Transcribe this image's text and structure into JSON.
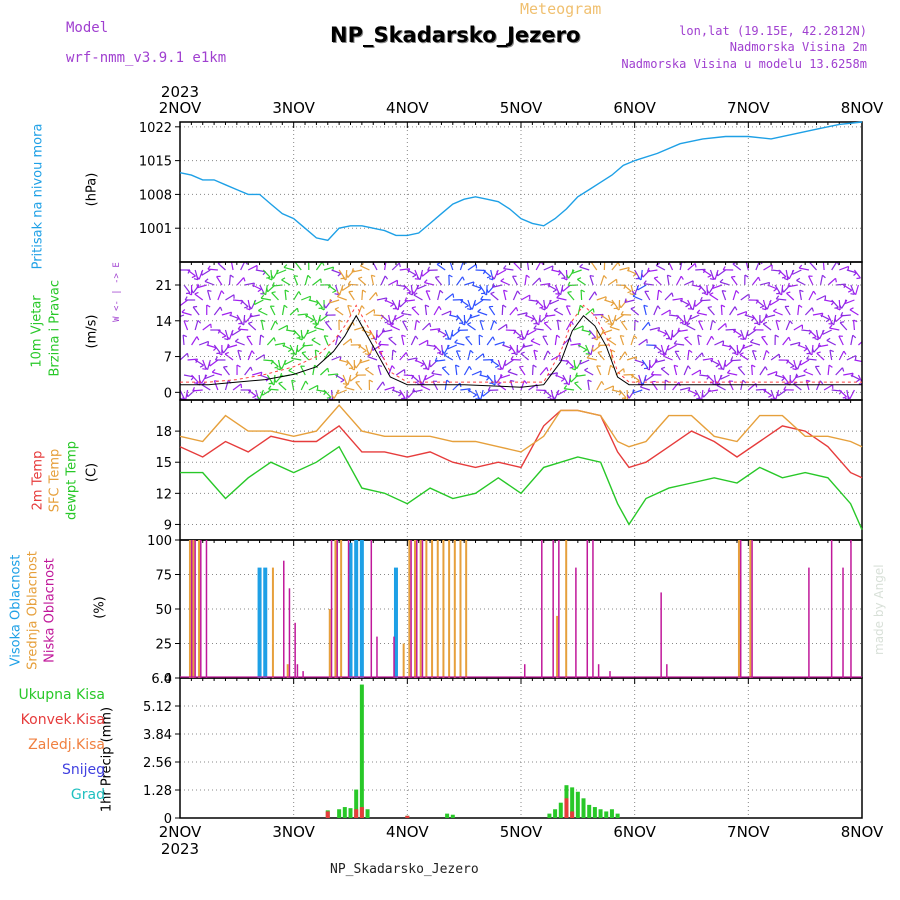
{
  "header": {
    "model_label": "Model",
    "model_version": "wrf-nmm_v3.9.1  e1km",
    "meteogram_label": "Meteogram",
    "station": "NP_Skadarsko_Jezero",
    "lonlat": "lon,lat (19.15E, 42.2812N)",
    "height": "Nadmorska Visina 2m",
    "model_height": "Nadmorska Visina u modelu 13.6258m"
  },
  "footer": {
    "station": "NP_Skadarsko_Jezero",
    "credit": "made by Angel"
  },
  "time_axis": {
    "year": "2023",
    "ticks": [
      "2NOV",
      "3NOV",
      "4NOV",
      "5NOV",
      "6NOV",
      "7NOV",
      "8NOV"
    ]
  },
  "panel_labels": {
    "pressure": "Pritisak na nivou mora",
    "pressure_unit": "(hPa)",
    "wind_1": "10m Vjetar",
    "wind_2": "Brzina i Pravac",
    "wind_unit": "(m/s)",
    "compass": "W  <- | ->  E",
    "temp_2m": "2m Temp",
    "temp_sfc": "SFC Temp",
    "temp_dew": "dewpt Temp",
    "temp_unit": "(C)",
    "cloud_high": "Visoka Oblacnost",
    "cloud_mid": "Srednja Oblacnost",
    "cloud_low": "Niska Oblacnost",
    "cloud_unit": "(%)",
    "precip_unit": "1hr Precip  (mm)",
    "precip_total": "Ukupna  Kisa",
    "precip_conv": "Konvek.Kisa",
    "precip_frozen": "Zaledj.Kisa",
    "precip_snow": "Snijeg",
    "precip_hail": "Grad"
  },
  "colors": {
    "pressure": "#1ea0e6",
    "wind_speed": "#000000",
    "wind_gust": "#ff4040",
    "temp_2m": "#e63c3c",
    "temp_sfc": "#e6a03c",
    "temp_dew": "#28c828",
    "cloud_high": "#1ea0e6",
    "cloud_mid": "#e6a03c",
    "cloud_low": "#c0189a",
    "precip_total": "#28c828",
    "precip_conv": "#e63c3c",
    "header_purple": "#a040d0"
  },
  "chart_data": [
    {
      "type": "line",
      "panel": "pressure",
      "x": [
        0,
        0.1,
        0.2,
        0.3,
        0.4,
        0.5,
        0.6,
        0.7,
        0.8,
        0.9,
        1.0,
        1.1,
        1.2,
        1.3,
        1.4,
        1.5,
        1.6,
        1.7,
        1.8,
        1.9,
        2.0,
        2.1,
        2.2,
        2.3,
        2.4,
        2.5,
        2.6,
        2.7,
        2.8,
        2.9,
        3.0,
        3.1,
        3.2,
        3.3,
        3.4,
        3.5,
        3.6,
        3.7,
        3.8,
        3.9,
        4.0,
        4.2,
        4.4,
        4.6,
        4.8,
        5.0,
        5.2,
        5.4,
        5.6,
        5.8,
        6.0
      ],
      "series": [
        {
          "values": [
            1012.5,
            1012,
            1011,
            1011,
            1010,
            1009,
            1008,
            1008,
            1006,
            1004,
            1003,
            1001,
            999,
            998.5,
            1001,
            1001.5,
            1001.5,
            1001,
            1000.5,
            999.5,
            999.5,
            1000,
            1002,
            1004,
            1006,
            1007,
            1007.5,
            1007,
            1006.5,
            1005,
            1003,
            1002,
            1001.5,
            1003,
            1005,
            1007.5,
            1009,
            1010.5,
            1012,
            1014,
            1015,
            1016.5,
            1018.5,
            1019.5,
            1020,
            1020,
            1019.5,
            1020.5,
            1021.5,
            1022.5,
            1023
          ]
        }
      ],
      "ylabel": "(hPa)",
      "yticks": [
        1001,
        1008,
        1015,
        1022
      ],
      "ylim": [
        994,
        1023
      ],
      "grid": true
    },
    {
      "type": "line",
      "panel": "wind",
      "x": [
        0,
        0.25,
        0.5,
        0.75,
        1.0,
        1.2,
        1.35,
        1.45,
        1.55,
        1.7,
        1.85,
        2.0,
        2.5,
        3.0,
        3.2,
        3.35,
        3.45,
        3.55,
        3.65,
        3.75,
        3.85,
        3.95,
        4.2,
        4.5,
        5.0,
        5.5,
        6.0
      ],
      "series": [
        {
          "values": [
            1.5,
            1.5,
            2,
            2.5,
            3.5,
            5,
            8,
            11,
            15,
            9,
            3,
            1.5,
            1.5,
            1,
            1.5,
            6,
            12,
            15,
            13,
            9,
            3,
            1.5,
            1.5,
            1.5,
            1.5,
            1.5,
            1.5
          ]
        },
        {
          "values": [
            2,
            2,
            2.5,
            3.5,
            5,
            7,
            10,
            13,
            17,
            11,
            4,
            2,
            2,
            2,
            2,
            8,
            14,
            17,
            15,
            11,
            4,
            2,
            2,
            2,
            2,
            2,
            2
          ]
        }
      ],
      "ylabel": "(m/s)",
      "yticks": [
        0,
        7,
        14,
        21
      ],
      "ylim": [
        -1.5,
        25.5
      ],
      "grid": true
    },
    {
      "type": "line",
      "panel": "temperature",
      "x": [
        0,
        0.2,
        0.4,
        0.6,
        0.8,
        1.0,
        1.2,
        1.4,
        1.6,
        1.8,
        2.0,
        2.2,
        2.4,
        2.6,
        2.8,
        3.0,
        3.2,
        3.35,
        3.5,
        3.7,
        3.85,
        3.95,
        4.1,
        4.3,
        4.5,
        4.7,
        4.9,
        5.1,
        5.3,
        5.5,
        5.7,
        5.9,
        6.0
      ],
      "series": [
        {
          "name": "2m Temp",
          "values": [
            16.5,
            15.5,
            17,
            16,
            17.5,
            17,
            17,
            18.5,
            16,
            16,
            15.5,
            16,
            15,
            14.5,
            15,
            14.5,
            18.5,
            20,
            20,
            19.5,
            16,
            14.5,
            15,
            16.5,
            18,
            17,
            15.5,
            17,
            18.5,
            18,
            16.5,
            14,
            13.5
          ]
        },
        {
          "name": "SFC Temp",
          "values": [
            17.5,
            17,
            19.5,
            18,
            18,
            17.5,
            18,
            20.5,
            18,
            17.5,
            17.5,
            17.5,
            17,
            17,
            16.5,
            16,
            17.5,
            20,
            20,
            19.5,
            17,
            16.5,
            17,
            19.5,
            19.5,
            17.5,
            17,
            19.5,
            19.5,
            17.5,
            17.5,
            17,
            16.5
          ]
        },
        {
          "name": "dewpt Temp",
          "values": [
            14,
            14,
            11.5,
            13.5,
            15,
            14,
            15,
            16.5,
            12.5,
            12,
            11,
            12.5,
            11.5,
            12,
            13.5,
            12,
            14.5,
            15,
            15.5,
            15,
            11,
            9,
            11.5,
            12.5,
            13,
            13.5,
            13,
            14.5,
            13.5,
            14,
            13.5,
            11,
            8.5
          ]
        }
      ],
      "ylabel": "(C)",
      "yticks": [
        9,
        12,
        15,
        18
      ],
      "ylim": [
        7.5,
        21
      ],
      "grid": true
    },
    {
      "type": "bar",
      "panel": "clouds",
      "x": [
        0.07,
        0.1,
        0.15,
        0.2,
        0.7,
        0.75,
        0.8,
        0.88,
        0.93,
        0.98,
        1.0,
        1.05,
        1.3,
        1.35,
        1.4,
        1.45,
        1.5,
        1.55,
        1.6,
        1.65,
        1.7,
        1.85,
        1.9,
        1.95,
        2.0,
        2.05,
        2.1,
        2.15,
        2.2,
        2.25,
        2.3,
        2.35,
        2.4,
        2.45,
        2.5,
        3.0,
        3.15,
        3.25,
        3.3,
        3.38,
        3.45,
        3.55,
        3.6,
        3.65,
        3.75,
        4.2,
        4.25,
        4.9,
        5.0,
        5.5,
        5.7,
        5.8,
        5.87
      ],
      "series": [
        {
          "name": "Visoka Oblacnost",
          "values": [
            0,
            0,
            0,
            0,
            80,
            80,
            0,
            0,
            0,
            0,
            0,
            0,
            0,
            0,
            0,
            0,
            98,
            100,
            100,
            0,
            0,
            0,
            80,
            0,
            0,
            0,
            0,
            0,
            0,
            0,
            0,
            0,
            0,
            0,
            0,
            0,
            0,
            0,
            0,
            0,
            0,
            0,
            0,
            0,
            0,
            0,
            0,
            0,
            0,
            0,
            0,
            0,
            0
          ]
        },
        {
          "name": "Srednja Oblacnost",
          "values": [
            100,
            100,
            100,
            0,
            0,
            0,
            80,
            0,
            10,
            0,
            0,
            0,
            50,
            100,
            100,
            0,
            0,
            0,
            0,
            0,
            0,
            0,
            0,
            25,
            100,
            100,
            100,
            100,
            100,
            100,
            100,
            100,
            100,
            100,
            100,
            0,
            0,
            0,
            45,
            100,
            0,
            0,
            0,
            0,
            0,
            0,
            0,
            100,
            100,
            0,
            0,
            0,
            0
          ]
        },
        {
          "name": "Niska Oblacnost",
          "values": [
            100,
            100,
            100,
            100,
            0,
            0,
            0,
            85,
            65,
            40,
            10,
            5,
            100,
            100,
            0,
            100,
            0,
            0,
            0,
            100,
            30,
            30,
            0,
            0,
            100,
            100,
            100,
            0,
            0,
            0,
            0,
            0,
            0,
            0,
            0,
            10,
            100,
            100,
            100,
            0,
            80,
            100,
            100,
            10,
            5,
            62,
            10,
            100,
            100,
            80,
            100,
            80,
            100
          ]
        }
      ],
      "ylabel": "(%)",
      "yticks": [
        0,
        25,
        50,
        75,
        100
      ],
      "ylim": [
        0,
        100
      ],
      "grid": true
    },
    {
      "type": "bar",
      "panel": "precipitation",
      "x": [
        1.3,
        1.4,
        1.45,
        1.5,
        1.55,
        1.6,
        1.65,
        2.0,
        2.35,
        2.4,
        3.25,
        3.3,
        3.35,
        3.4,
        3.45,
        3.5,
        3.55,
        3.6,
        3.65,
        3.7,
        3.75,
        3.8,
        3.85
      ],
      "series": [
        {
          "name": "Ukupna  Kisa",
          "values": [
            0.35,
            0.4,
            0.5,
            0.45,
            1.3,
            6.1,
            0.4,
            0.1,
            0.2,
            0.15,
            0.2,
            0.4,
            0.7,
            1.5,
            1.4,
            1.2,
            0.9,
            0.6,
            0.5,
            0.4,
            0.3,
            0.4,
            0.2
          ]
        },
        {
          "name": "Konvek.Kisa",
          "values": [
            0.3,
            0,
            0,
            0,
            0.4,
            0.5,
            0,
            0.1,
            0,
            0,
            0,
            0,
            0,
            0.9,
            0.3,
            0,
            0,
            0,
            0,
            0,
            0,
            0,
            0
          ]
        }
      ],
      "ylabel": "1hr Precip  (mm)",
      "yticks": [
        0,
        1.28,
        2.56,
        3.84,
        5.12,
        6.4
      ],
      "ylim": [
        0,
        6.4
      ],
      "grid": true
    }
  ]
}
